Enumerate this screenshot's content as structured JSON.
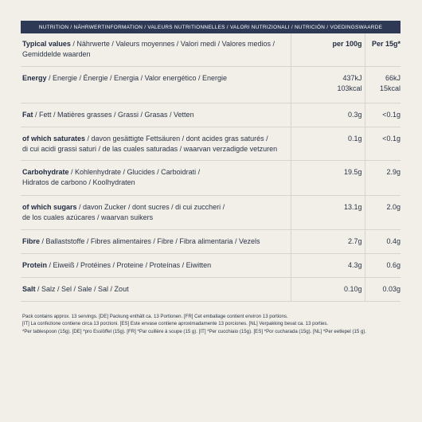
{
  "header": "NUTRITION / NÄHRWERTINFORMATION / VALEURS NUTRITIONNELLES / VALORI NUTRIZIONALI / NUTRICIÓN / VOEDINGSWAARDE",
  "table": {
    "heading": {
      "label_bold": "Typical values",
      "label_rest": " / Nährwerte / Valeurs moyennes / Valori medi / Valores medios /",
      "label_line2": "Gemiddelde waarden",
      "col_100g": "per 100g",
      "col_15g": "Per 15g*"
    },
    "rows": [
      {
        "bold": "Energy",
        "rest": " / Energie / Énergie / Energia / Valor energético / Energie",
        "line2": "",
        "v100": "437kJ",
        "v100b": "103kcal",
        "v15": "66kJ",
        "v15b": "15kcal"
      },
      {
        "bold": "Fat",
        "rest": " / Fett / Matières grasses / Grassi / Grasas / Vetten",
        "line2": "",
        "v100": "0.3g",
        "v100b": "",
        "v15": "<0.1g",
        "v15b": ""
      },
      {
        "bold": "of which saturates",
        "rest": " / davon gesättigte Fettsäuren / dont acides gras saturés /",
        "line2": "di cui acidi grassi saturi / de las cuales saturadas / waarvan verzadigde vetzuren",
        "v100": "0.1g",
        "v100b": "",
        "v15": "<0.1g",
        "v15b": ""
      },
      {
        "bold": "Carbohydrate",
        "rest": " / Kohlenhydrate / Glucides / Carboidrati /",
        "line2": "Hidratos de carbono / Koolhydraten",
        "v100": "19.5g",
        "v100b": "",
        "v15": "2.9g",
        "v15b": ""
      },
      {
        "bold": "of which sugars",
        "rest": " / davon Zucker / dont sucres / di cui zuccheri /",
        "line2": "de los cuales azúcares / waarvan suikers",
        "v100": "13.1g",
        "v100b": "",
        "v15": "2.0g",
        "v15b": ""
      },
      {
        "bold": "Fibre",
        "rest": " / Ballaststoffe / Fibres alimentaires / Fibre / Fibra alimentaria / Vezels",
        "line2": "",
        "v100": "2.7g",
        "v100b": "",
        "v15": "0.4g",
        "v15b": ""
      },
      {
        "bold": "Protein",
        "rest": " / Eiweiß / Protéines / Proteine / Proteínas / Eiwitten",
        "line2": "",
        "v100": "4.3g",
        "v100b": "",
        "v15": "0.6g",
        "v15b": ""
      },
      {
        "bold": "Salt",
        "rest": " / Salz / Sel / Sale / Sal / Zout",
        "line2": "",
        "v100": "0.10g",
        "v100b": "",
        "v15": "0.03g",
        "v15b": ""
      }
    ]
  },
  "footer": {
    "line1": "Pack contains approx. 13 servings. [DE] Packung enthält ca. 13 Portionen. [FR] Cet emballage contient environ 13 portions.",
    "line2": "[IT] La confezione contiene circa 13 porzioni. [ES] Este envase contiene aproximadamente 13 porciones. [NL] Verpakking bevat ca. 13 porties.",
    "line3": "*Per tablespoon (15g). [DE] *pro Esslöffel (15g). [FR] *Par cuillère à soupe (15 g). [IT] *Per cucchiaio (15g). [ES] *Por cucharada (15g). [NL] *Per eetlepel (15 g)."
  }
}
